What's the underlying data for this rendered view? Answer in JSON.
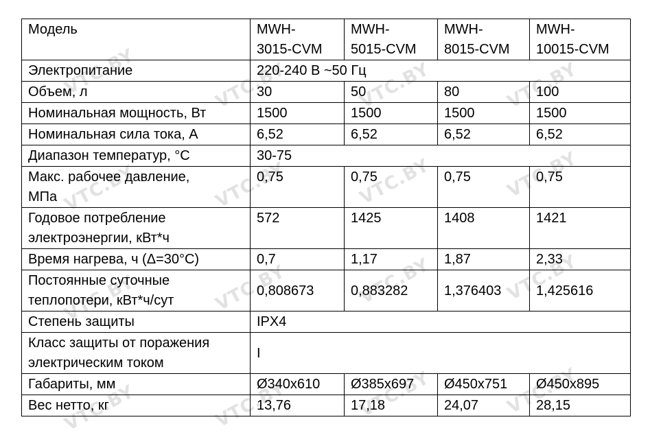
{
  "watermark": "VTC.BY",
  "header": {
    "label": "Модель",
    "models": [
      {
        "line1": "MWH-",
        "line2": "3015-CVM"
      },
      {
        "line1": "MWH-",
        "line2": "5015-CVM"
      },
      {
        "line1": "MWH-",
        "line2": "8015-CVM"
      },
      {
        "line1": "MWH-",
        "line2": "10015-CVM"
      }
    ]
  },
  "rows": {
    "power_supply": {
      "label": "Электропитание",
      "value": "220-240 В ~50 Гц"
    },
    "volume": {
      "label": "Объем, л",
      "values": [
        "30",
        "50",
        "80",
        "100"
      ]
    },
    "rated_power": {
      "label": "Номинальная мощность, Вт",
      "values": [
        "1500",
        "1500",
        "1500",
        "1500"
      ]
    },
    "rated_current": {
      "label": "Номинальная сила тока, А",
      "values": [
        "6,52",
        "6,52",
        "6,52",
        "6,52"
      ]
    },
    "temp_range": {
      "label": "Диапазон температур, °С",
      "value": "30-75"
    },
    "max_pressure": {
      "label_line1": "Макс. рабочее давление,",
      "label_line2": "МПа",
      "values": [
        "0,75",
        "0,75",
        "0,75",
        "0,75"
      ]
    },
    "annual_consumption": {
      "label_line1": "Годовое потребление",
      "label_line2": "электроэнергии, кВт*ч",
      "values": [
        "572",
        "1425",
        "1408",
        "1421"
      ]
    },
    "heating_time": {
      "label": "Время нагрева, ч (Δ=30°С)",
      "values": [
        "0,7",
        "1,17",
        "1,87",
        "2,33"
      ]
    },
    "heat_loss": {
      "label_line1": "Постоянные суточные",
      "label_line2": "теплопотери, кВт*ч/сут",
      "values": [
        "0,808673",
        "0,883282",
        "1,376403",
        "1,425616"
      ]
    },
    "protection_degree": {
      "label": "Степень защиты",
      "value": "IPX4"
    },
    "shock_class": {
      "label_line1": "Класс защиты от поражения",
      "label_line2": "электрическим током",
      "value": "I"
    },
    "dimensions": {
      "label": "Габариты, мм",
      "values": [
        "Ø340x610",
        "Ø385x697",
        "Ø450x751",
        "Ø450x895"
      ]
    },
    "net_weight": {
      "label": "Вес нетто, кг",
      "values": [
        "13,76",
        "17,18",
        "24,07",
        "28,15"
      ]
    }
  }
}
